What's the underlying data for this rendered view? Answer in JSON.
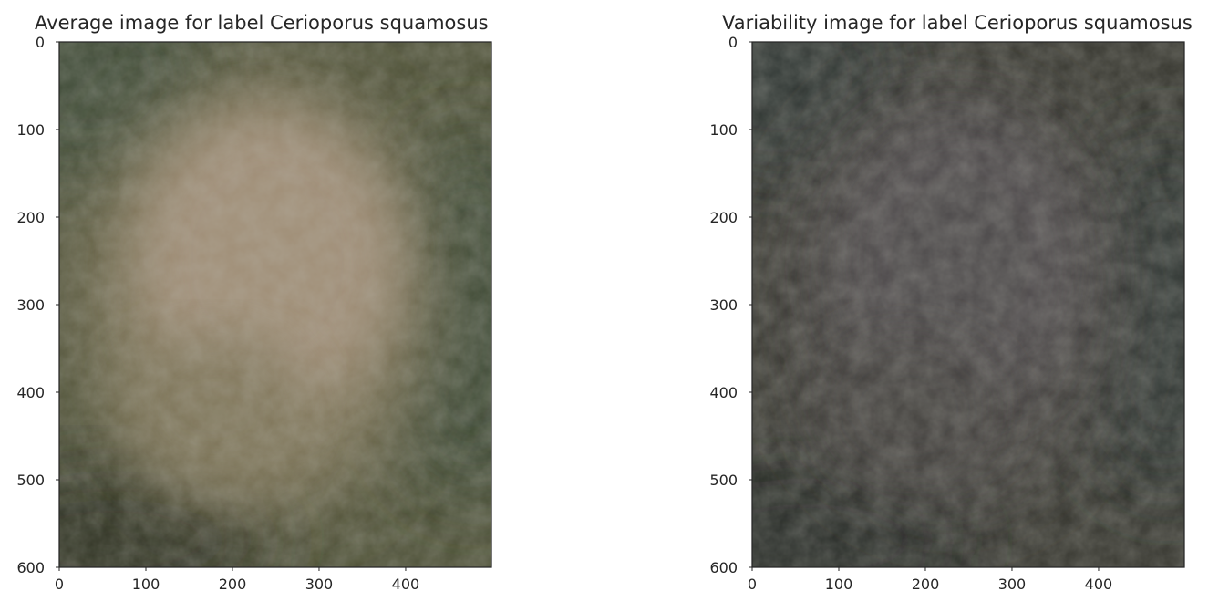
{
  "chart_data": [
    {
      "type": "image",
      "title": "Average image for label Cerioporus squamosus",
      "xlim": [
        0,
        499
      ],
      "ylim": [
        600,
        0
      ],
      "xticks": [
        0,
        100,
        200,
        300,
        400
      ],
      "yticks": [
        0,
        100,
        200,
        300,
        400,
        500,
        600
      ],
      "colors": {
        "background": "#4d5036",
        "blob": "#a4917a",
        "blob_mid": "#7e7459",
        "corner": "#3e4a34",
        "dark": "#2e3324"
      },
      "grid": false
    },
    {
      "type": "image",
      "title": "Variability image for label Cerioporus squamosus",
      "xlim": [
        0,
        499
      ],
      "ylim": [
        600,
        0
      ],
      "xticks": [
        0,
        100,
        200,
        300,
        400
      ],
      "yticks": [
        0,
        100,
        200,
        300,
        400,
        500,
        600
      ],
      "colors": {
        "background": "#36362f",
        "blob": "#4e4a4c",
        "blob_mid": "#423f3e",
        "corner": "#2f3431",
        "dark": "#272a25"
      },
      "grid": false
    }
  ]
}
